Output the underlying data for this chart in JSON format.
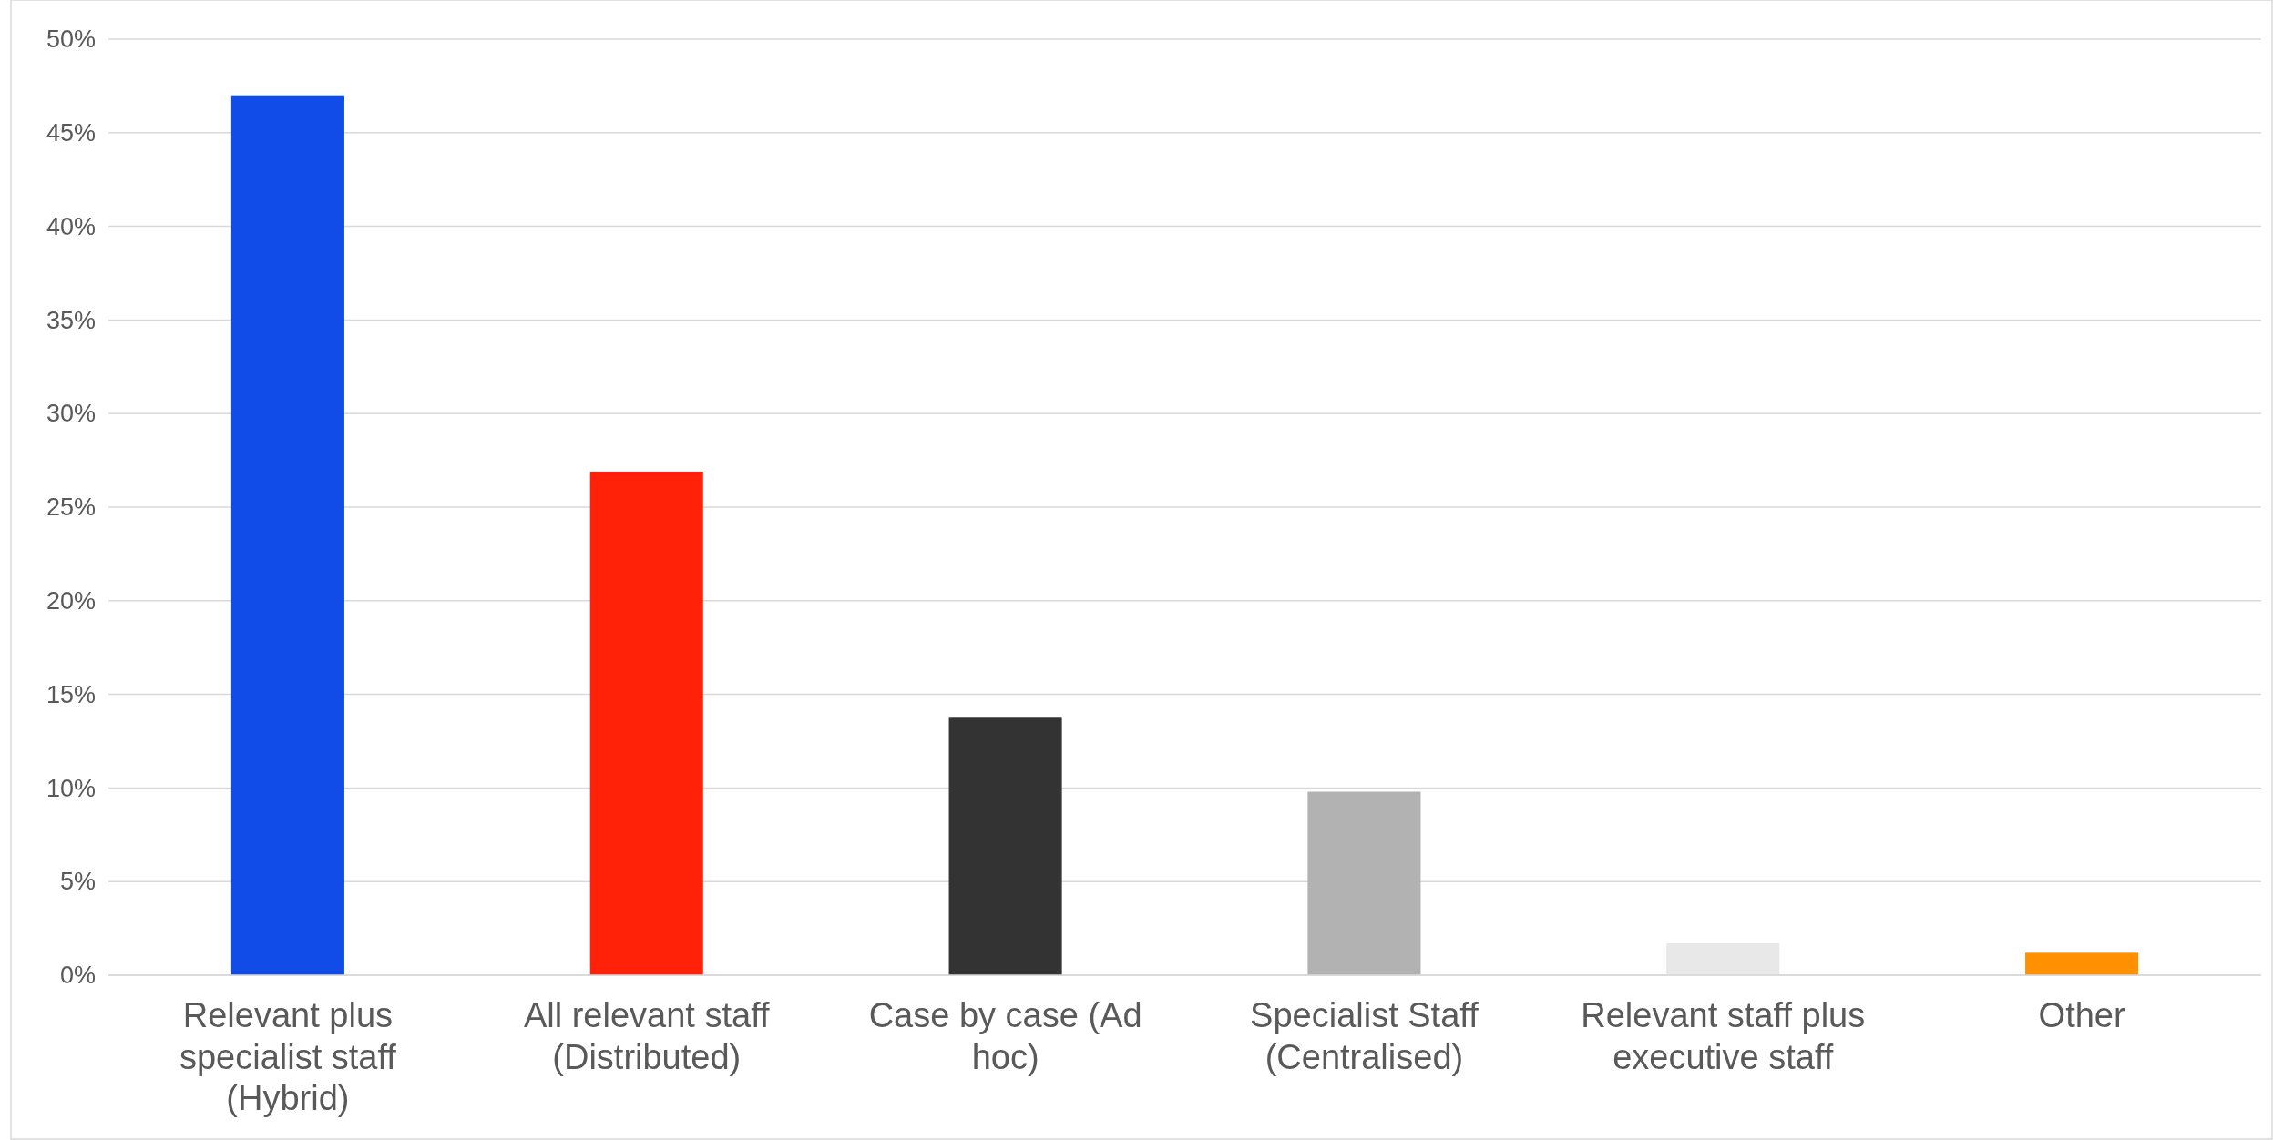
{
  "chart_data": {
    "type": "bar",
    "categories": [
      "Relevant plus specialist staff (Hybrid)",
      "All relevant staff (Distributed)",
      "Case by case (Ad hoc)",
      "Specialist Staff (Centralised)",
      "Relevant staff plus executive staff",
      "Other"
    ],
    "values": [
      47,
      26.9,
      13.8,
      9.8,
      1.7,
      1.2
    ],
    "colors": [
      "#114ce8",
      "#ff2209",
      "#333333",
      "#b2b2b2",
      "#e8e8e8",
      "#ff9100"
    ],
    "ylim": [
      0,
      50
    ],
    "yticks": [
      {
        "value": 0,
        "label": "0%"
      },
      {
        "value": 5,
        "label": "5%"
      },
      {
        "value": 10,
        "label": "10%"
      },
      {
        "value": 15,
        "label": "15%"
      },
      {
        "value": 20,
        "label": "20%"
      },
      {
        "value": 25,
        "label": "25%"
      },
      {
        "value": 30,
        "label": "30%"
      },
      {
        "value": 35,
        "label": "35%"
      },
      {
        "value": 40,
        "label": "40%"
      },
      {
        "value": 45,
        "label": "45%"
      },
      {
        "value": 50,
        "label": "50%"
      }
    ],
    "grid": "y"
  }
}
